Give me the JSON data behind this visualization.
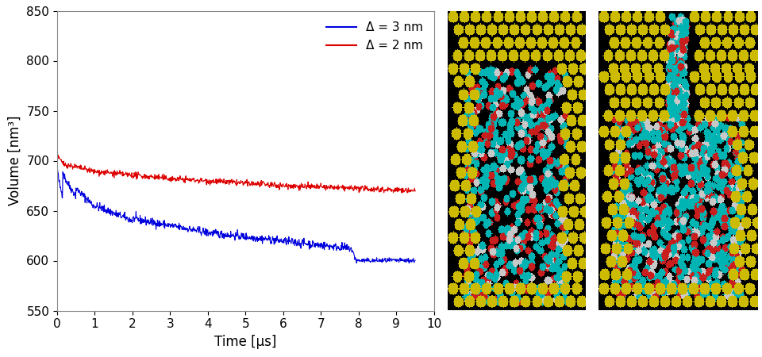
{
  "xlabel": "Time [μs]",
  "ylabel": "Volume [nm³]",
  "xlim": [
    0,
    10
  ],
  "ylim": [
    550,
    850
  ],
  "xticks": [
    0,
    1,
    2,
    3,
    4,
    5,
    6,
    7,
    8,
    9,
    10
  ],
  "yticks": [
    550,
    600,
    650,
    700,
    750,
    800,
    850
  ],
  "legend_labels": [
    "Δ = 3 nm",
    "Δ = 2 nm"
  ],
  "legend_colors": [
    "#0000dd",
    "#dd0000"
  ],
  "bg_color": "#ffffff",
  "font_size": 11,
  "img1_bg": "#000000",
  "img2_bg": "#000000",
  "yellow": "#ccbb00",
  "cyan": "#00cccc",
  "red_atom": "#dd0000",
  "white_atom": "#dddddd"
}
